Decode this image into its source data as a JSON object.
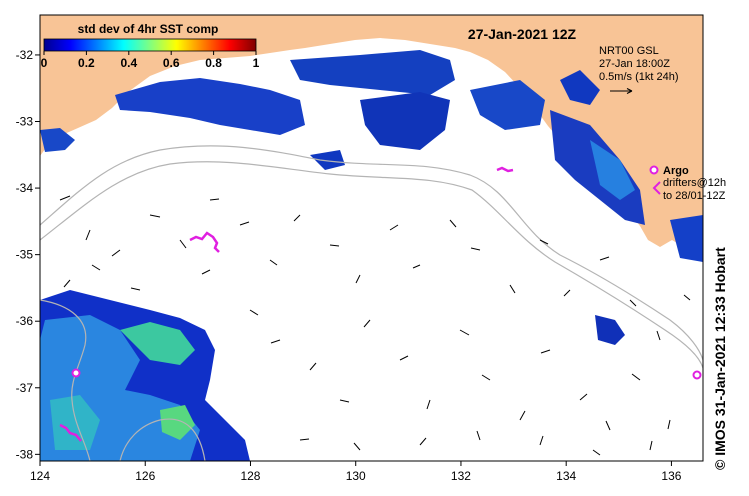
{
  "map": {
    "date_title": "27-Jan-2021 12Z",
    "colorbar": {
      "title": "std dev of 4hr SST comp",
      "tick_labels": [
        "0",
        "0.2",
        "0.4",
        "0.6",
        "0.8",
        "1"
      ],
      "range": [
        0,
        1
      ],
      "colormap": "jet"
    },
    "currents_note": {
      "line1": "NRT00 GSL",
      "line2": "27-Jan 18:00Z",
      "line3": "0.5m/s (1kt 24h)"
    },
    "drifters_legend": {
      "argo_label": "Argo",
      "drifter_line1": "drifters@12h",
      "drifter_line2": "to 28/01-12Z",
      "color": "#e020e0"
    },
    "credit": "© IMOS 31-Jan-2021 12:33 Hobart",
    "x_ticks": [
      "124",
      "126",
      "128",
      "130",
      "132",
      "134",
      "136"
    ],
    "y_ticks": [
      "-32",
      "-33",
      "-34",
      "-35",
      "-36",
      "-37",
      "-38"
    ],
    "lon_range": [
      124,
      136.6
    ],
    "lat_range": [
      -38.1,
      -31.4
    ],
    "colors": {
      "land": "#f8c496",
      "ocean_blank": "#ffffff",
      "shelf_contour": "#b4b4b4",
      "arrows": "#000000",
      "sst_low": "#00008f",
      "sst_mid": "#00a0ff",
      "sst_high": "#80ff80"
    }
  }
}
